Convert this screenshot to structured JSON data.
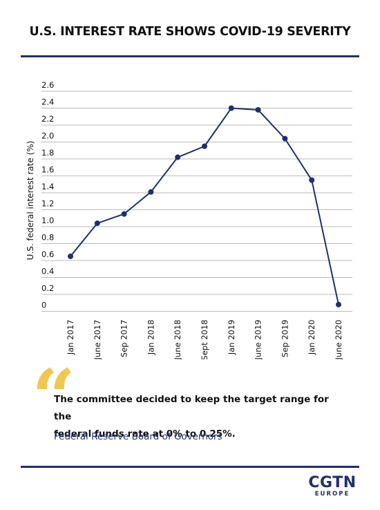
{
  "header": {
    "title": "U.S. INTEREST RATE SHOWS COVID-19 SEVERITY"
  },
  "chart_data": {
    "type": "line",
    "title": "",
    "xlabel": "",
    "ylabel": "U.S. federal interest rate (%)",
    "categories": [
      "Jan 2017",
      "June 2017",
      "Sep 2017",
      "Jan 2018",
      "June 2018",
      "Sept 2018",
      "Jan 2019",
      "June 2019",
      "Sep 2019",
      "Jan 2020",
      "June 2020"
    ],
    "series": [
      {
        "values": [
          0.65,
          1.04,
          1.15,
          1.41,
          1.82,
          1.95,
          2.4,
          2.38,
          2.04,
          1.55,
          0.08
        ]
      }
    ],
    "yticks": [
      "2.6",
      "2.4",
      "2.2",
      "2.0",
      "1.8",
      "1.6",
      "1.4",
      "1.2",
      "1.0",
      "0.8",
      "0.6",
      "0.4",
      "0.2",
      "0"
    ],
    "ylim": [
      0,
      2.6
    ],
    "grid": true,
    "colors": {
      "line": "#1f2f6e",
      "grid": "#bbbbbb"
    }
  },
  "quote": {
    "mark": "“",
    "line1": "The committee decided to keep the target range for the",
    "line2": "federal funds rate at 0% to 0.25%.",
    "source": "Federal Reserve Board of Governors"
  },
  "logo": {
    "main": "CGTN",
    "sub": "EUROPE"
  }
}
